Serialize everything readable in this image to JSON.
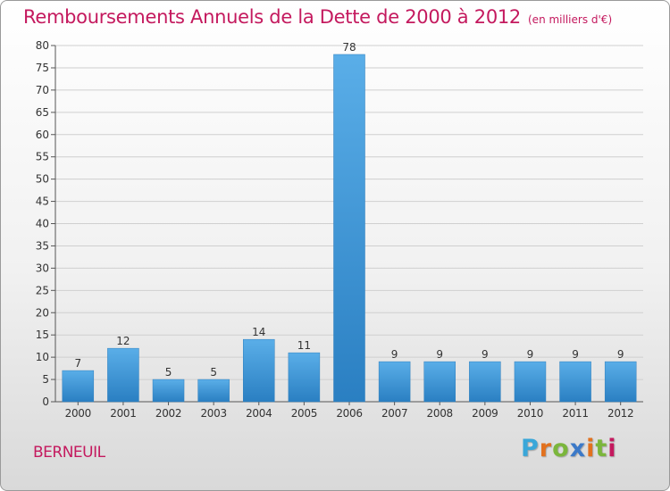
{
  "title": "Remboursements Annuels de la Dette de 2000 à 2012",
  "subtitle": "(en milliers d'€)",
  "commune": "BERNEUIL",
  "logo": {
    "p": "P",
    "r": "r",
    "o": "o",
    "x": "x",
    "i1": "i",
    "t": "t",
    "i2": "i"
  },
  "colors": {
    "title": "#c4195e",
    "bar_top": "#5aaee8",
    "bar_bottom": "#2a7fc2",
    "grid": "#cfcfcf"
  },
  "chart_data": {
    "type": "bar",
    "title": "Remboursements Annuels de la Dette de 2000 à 2012",
    "subtitle": "(en milliers d'€)",
    "xlabel": "",
    "ylabel": "",
    "categories": [
      "2000",
      "2001",
      "2002",
      "2003",
      "2004",
      "2005",
      "2006",
      "2007",
      "2008",
      "2009",
      "2010",
      "2011",
      "2012"
    ],
    "values": [
      7,
      12,
      5,
      5,
      14,
      11,
      78,
      9,
      9,
      9,
      9,
      9,
      9
    ],
    "data_labels": [
      "7",
      "12",
      "5",
      "5",
      "14",
      "11",
      "78",
      "9",
      "9",
      "9",
      "9",
      "9",
      "9"
    ],
    "ylim": [
      0,
      80
    ],
    "yticks": [
      0,
      5,
      10,
      15,
      20,
      25,
      30,
      35,
      40,
      45,
      50,
      55,
      60,
      65,
      70,
      75,
      80
    ],
    "grid": true,
    "legend": "none"
  }
}
